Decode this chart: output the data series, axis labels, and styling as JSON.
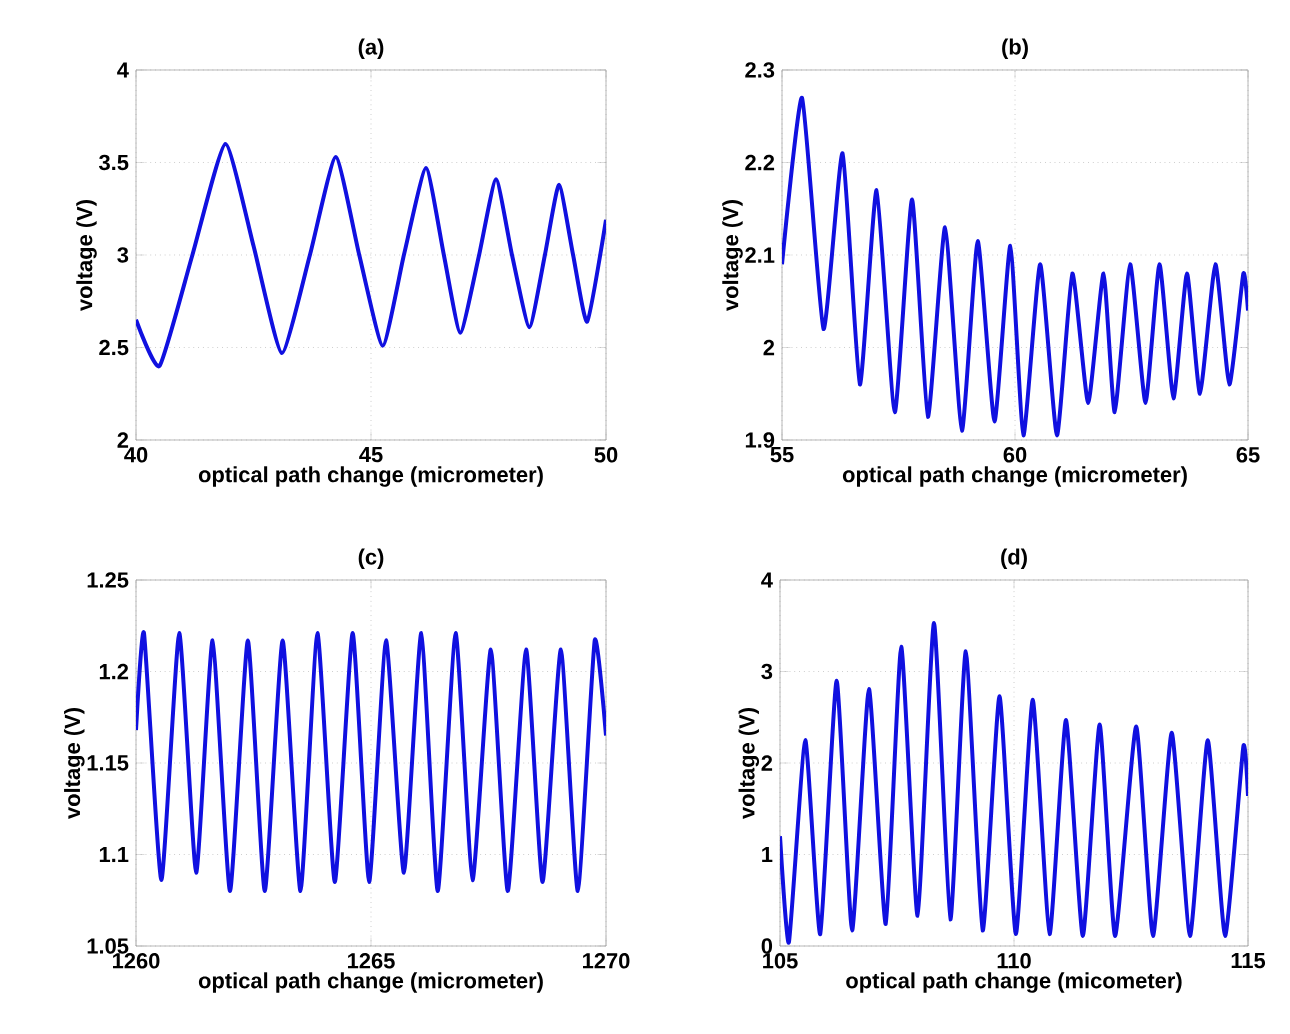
{
  "chart_data": [
    {
      "type": "line",
      "title": "(a)",
      "xlabel": "optical path change (micrometer)",
      "ylabel": "voltage (V)",
      "xlim": [
        40,
        50
      ],
      "ylim": [
        2,
        4
      ],
      "xticks": [
        40,
        45,
        50
      ],
      "yticks": [
        2,
        2.5,
        3,
        3.5,
        4
      ],
      "grid": true,
      "x": [
        40,
        40.5,
        41.2,
        41.9,
        42.5,
        43.1,
        43.7,
        44.25,
        44.75,
        45.25,
        45.7,
        46.17,
        46.55,
        46.9,
        47.3,
        47.66,
        48.0,
        48.37,
        48.7,
        49.0,
        49.3,
        49.6,
        50
      ],
      "series": [
        {
          "color": "#1010e0",
          "values": [
            2.65,
            2.4,
            3.0,
            3.6,
            3.05,
            2.47,
            3.0,
            3.53,
            3.0,
            2.51,
            3.0,
            3.47,
            3.0,
            2.58,
            3.0,
            3.41,
            3.0,
            2.61,
            3.0,
            3.38,
            3.0,
            2.64,
            3.19
          ]
        }
      ]
    },
    {
      "type": "line",
      "title": "(b)",
      "xlabel": "optical path change (micrometer)",
      "ylabel": "voltage (V)",
      "xlim": [
        55,
        65
      ],
      "ylim": [
        1.9,
        2.3
      ],
      "xticks": [
        55,
        60,
        65
      ],
      "yticks": [
        1.9,
        2,
        2.1,
        2.2,
        2.3
      ],
      "grid": true,
      "x": [
        55,
        55.43,
        55.89,
        56.3,
        56.67,
        57.03,
        57.42,
        57.79,
        58.13,
        58.5,
        58.86,
        59.2,
        59.56,
        59.9,
        60.18,
        60.54,
        60.9,
        61.23,
        61.57,
        61.9,
        62.14,
        62.47,
        62.8,
        63.1,
        63.4,
        63.69,
        63.97,
        64.3,
        64.6,
        64.9,
        65
      ],
      "series": [
        {
          "color": "#1010e0",
          "values": [
            2.09,
            2.27,
            2.02,
            2.21,
            1.96,
            2.17,
            1.93,
            2.16,
            1.925,
            2.13,
            1.91,
            2.115,
            1.92,
            2.11,
            1.905,
            2.09,
            1.905,
            2.08,
            1.94,
            2.08,
            1.93,
            2.09,
            1.94,
            2.09,
            1.945,
            2.08,
            1.95,
            2.09,
            1.96,
            2.08,
            2.04
          ]
        }
      ]
    },
    {
      "type": "line",
      "title": "(c)",
      "xlabel": "optical path change (micrometer)",
      "ylabel": "voltage (V)",
      "xlim": [
        1260,
        1270
      ],
      "ylim": [
        1.05,
        1.25
      ],
      "xticks": [
        1260,
        1265,
        1270
      ],
      "yticks": [
        1.05,
        1.1,
        1.15,
        1.2,
        1.25
      ],
      "grid": true,
      "x": [
        1260,
        1260.17,
        1260.54,
        1260.92,
        1261.28,
        1261.63,
        1262.0,
        1262.38,
        1262.74,
        1263.12,
        1263.5,
        1263.86,
        1264.23,
        1264.61,
        1264.96,
        1265.32,
        1265.7,
        1266.07,
        1266.42,
        1266.8,
        1267.16,
        1267.55,
        1267.91,
        1268.3,
        1268.65,
        1269.04,
        1269.4,
        1269.76,
        1270
      ],
      "series": [
        {
          "color": "#1010e0",
          "values": [
            1.168,
            1.221,
            1.086,
            1.221,
            1.09,
            1.217,
            1.08,
            1.217,
            1.08,
            1.217,
            1.08,
            1.221,
            1.085,
            1.221,
            1.085,
            1.217,
            1.09,
            1.221,
            1.08,
            1.221,
            1.086,
            1.212,
            1.08,
            1.212,
            1.085,
            1.212,
            1.08,
            1.217,
            1.165
          ]
        }
      ]
    },
    {
      "type": "line",
      "title": "(d)",
      "xlabel": "optical path change (micometer)",
      "ylabel": "voltage (V)",
      "xlim": [
        105,
        115
      ],
      "ylim": [
        0,
        4
      ],
      "xticks": [
        105,
        110,
        115
      ],
      "yticks": [
        0,
        1,
        2,
        3,
        4
      ],
      "grid": true,
      "x": [
        105,
        105.19,
        105.54,
        105.86,
        106.21,
        106.54,
        106.9,
        107.26,
        107.59,
        107.94,
        108.29,
        108.64,
        108.97,
        109.33,
        109.69,
        110.04,
        110.4,
        110.76,
        111.11,
        111.47,
        111.83,
        112.16,
        112.61,
        112.97,
        113.37,
        113.76,
        114.14,
        114.51,
        114.9,
        115
      ],
      "series": [
        {
          "color": "#1010e0",
          "values": [
            1.2,
            0.04,
            2.25,
            0.13,
            2.9,
            0.17,
            2.81,
            0.24,
            3.27,
            0.33,
            3.53,
            0.29,
            3.22,
            0.17,
            2.73,
            0.13,
            2.69,
            0.13,
            2.47,
            0.11,
            2.42,
            0.11,
            2.4,
            0.11,
            2.33,
            0.11,
            2.25,
            0.11,
            2.18,
            1.64
          ]
        }
      ]
    }
  ]
}
